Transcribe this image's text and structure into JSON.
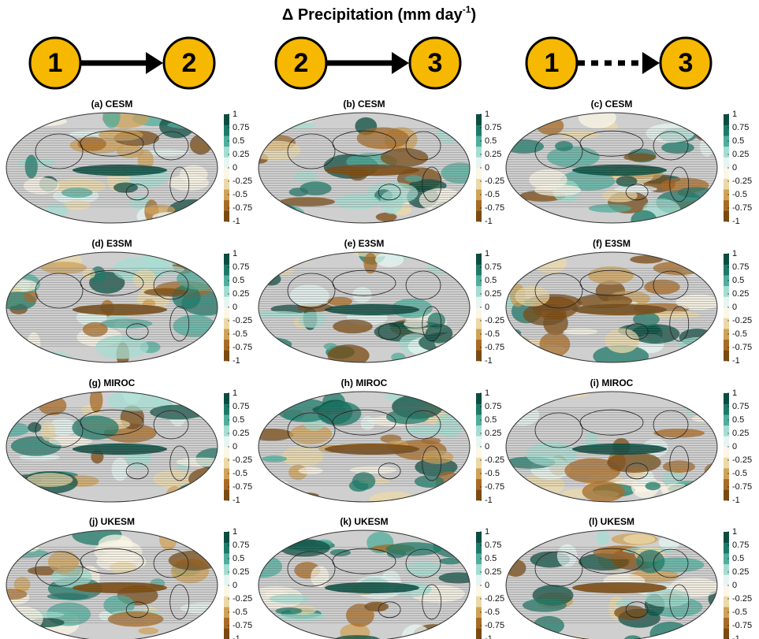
{
  "title": {
    "main": "Δ Precipitation (mm day",
    "superscript": "-1",
    "end": ")"
  },
  "columns": [
    {
      "from": "1",
      "to": "2",
      "arrow": "solid"
    },
    {
      "from": "2",
      "to": "3",
      "arrow": "solid"
    },
    {
      "from": "1",
      "to": "3",
      "arrow": "dotted"
    }
  ],
  "panels": [
    [
      "(a) CESM",
      "(b) CESM",
      "(c) CESM"
    ],
    [
      "(d) E3SM",
      "(e) E3SM",
      "(f) E3SM"
    ],
    [
      "(g) MIROC",
      "(h) MIROC",
      "(i) MIROC"
    ],
    [
      "(j) UKESM",
      "(k) UKESM",
      "(l) UKESM"
    ]
  ],
  "colorbar": {
    "lim": [
      -1,
      1
    ],
    "ticks": [
      1,
      0.75,
      0.5,
      0.25,
      0,
      -0.25,
      -0.5,
      -0.75,
      -1
    ],
    "colors": [
      "#7a4a12",
      "#a86b25",
      "#cfa259",
      "#ecd9a8",
      "#fbf6e6",
      "#e6f5f1",
      "#a6ddd2",
      "#4fae9c",
      "#1d7a68",
      "#0b4d40"
    ]
  },
  "circle_color": "#f6b800"
}
